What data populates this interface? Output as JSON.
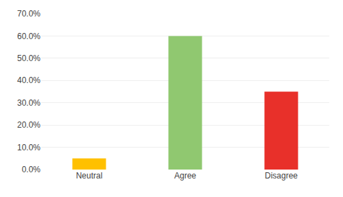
{
  "chart_data": {
    "type": "bar",
    "categories": [
      "Neutral",
      "Agree",
      "Disagree"
    ],
    "values": [
      5.0,
      60.0,
      35.0
    ],
    "colors": [
      "#FFC000",
      "#90C870",
      "#E8302A"
    ],
    "ylim": [
      0,
      70.0
    ],
    "yticks": [
      {
        "value": 0,
        "label": "0.0%"
      },
      {
        "value": 10,
        "label": "10.0%"
      },
      {
        "value": 20,
        "label": "20.0%"
      },
      {
        "value": 30,
        "label": "30.0%"
      },
      {
        "value": 40,
        "label": "40.0%"
      },
      {
        "value": 50,
        "label": "50.0%"
      },
      {
        "value": 60,
        "label": "60.0%"
      },
      {
        "value": 70,
        "label": "70.0%"
      }
    ],
    "grid": true
  }
}
